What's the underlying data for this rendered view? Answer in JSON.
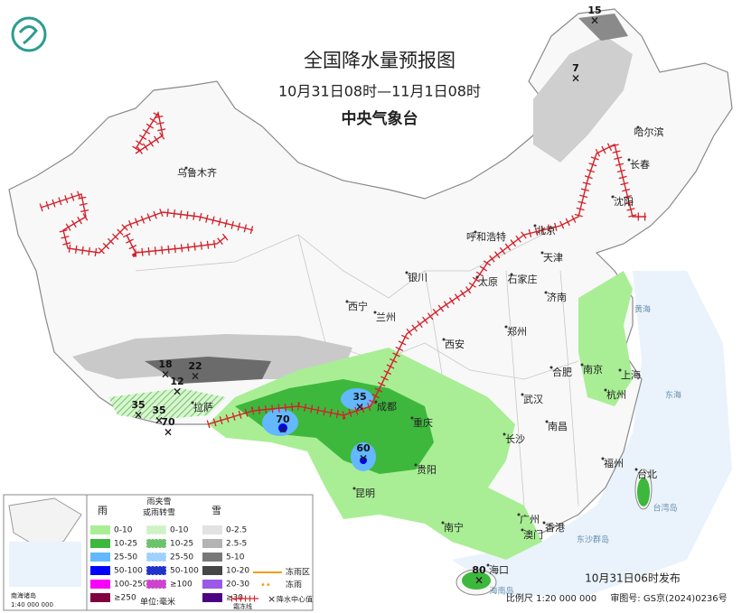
{
  "header": {
    "title": "全国降水量预报图",
    "subtitle": "10月31日08时—11月1日08时",
    "org": "中央气象台"
  },
  "cities": [
    "乌鲁木齐",
    "哈尔滨",
    "长春",
    "沈阳",
    "北京",
    "天津",
    "呼和浩特",
    "石家庄",
    "太原",
    "济南",
    "银川",
    "西宁",
    "兰州",
    "西安",
    "郑州",
    "南京",
    "上海",
    "合肥",
    "杭州",
    "武汉",
    "成都",
    "拉萨",
    "重庆",
    "长沙",
    "南昌",
    "福州",
    "台北",
    "贵阳",
    "昆明",
    "南宁",
    "广州",
    "澳门",
    "香港",
    "海口"
  ],
  "seas": [
    "黄海",
    "东海",
    "台湾岛",
    "东沙群岛",
    "海南岛"
  ],
  "precipitation_centers": [
    15,
    7,
    18,
    22,
    12,
    35,
    35,
    70,
    35,
    70,
    60,
    80
  ],
  "inset": {
    "title": "南海诸岛",
    "scale": "1:40 000 000"
  },
  "legend": {
    "rain": {
      "title": "雨",
      "items": [
        "0-10",
        "10-25",
        "25-50",
        "50-100",
        "100-250",
        "≥250"
      ]
    },
    "sleet": {
      "title": [
        "雨夹雪",
        "或雨转雪"
      ],
      "items": [
        "0-10",
        "10-25",
        "25-50",
        "50-100",
        "≥100"
      ]
    },
    "snow": {
      "title": "雪",
      "items": [
        "0-2.5",
        "2.5-5",
        "5-10",
        "10-20",
        "20-30",
        "≥30"
      ]
    },
    "symbols": [
      "冻雨区",
      "冻雨",
      "霜冻线",
      "降水中心值"
    ],
    "unit": "单位:毫米"
  },
  "footer": {
    "issued": "10月31日06时发布",
    "scale": "比例尺 1:20 000 000",
    "map_number": "审图号: GS京(2024)0236号"
  }
}
